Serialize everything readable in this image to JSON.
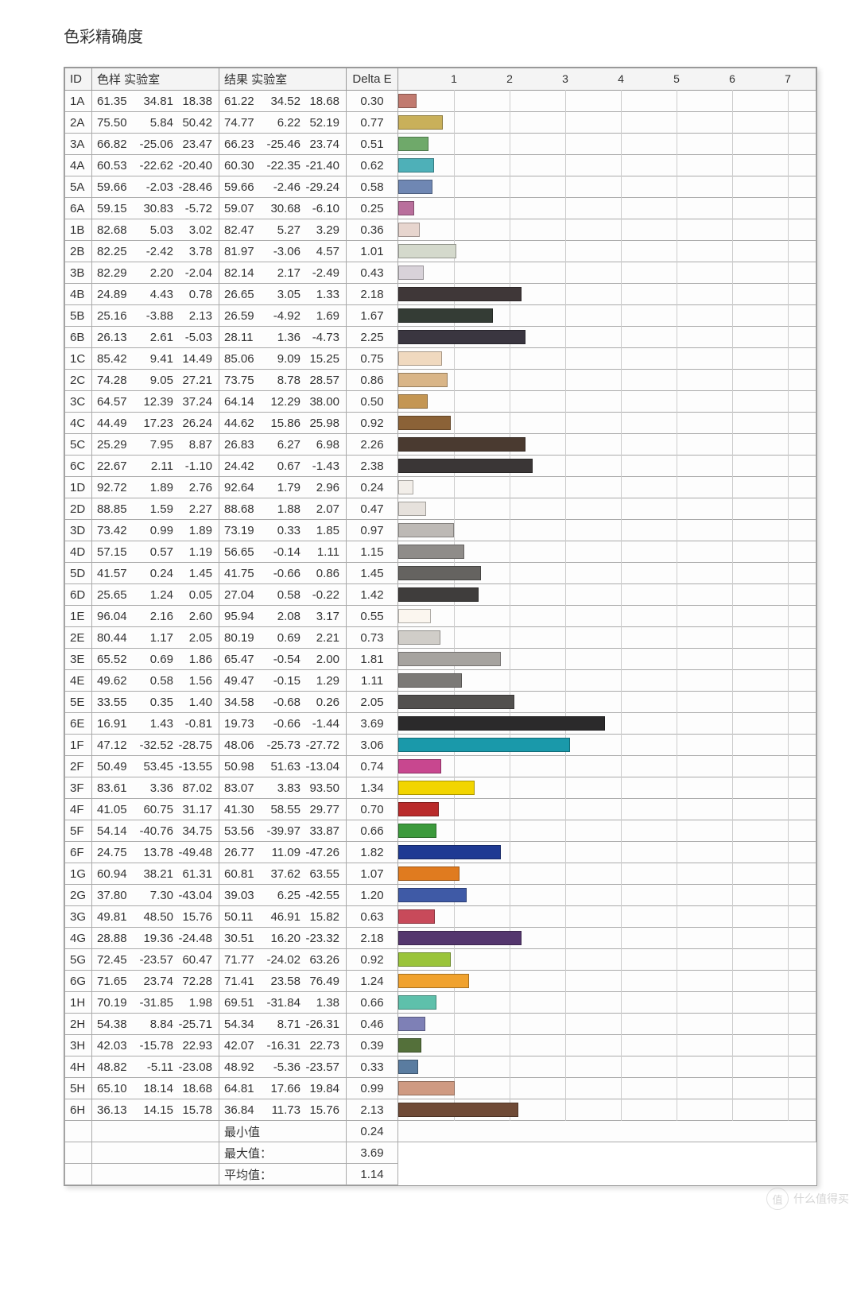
{
  "title": "色彩精确度",
  "columns": {
    "id": "ID",
    "sample": "色样 实验室",
    "result": "结果 实验室",
    "delta": "Delta E"
  },
  "chart": {
    "xmax": 7.5,
    "ticks": [
      1,
      2,
      3,
      4,
      5,
      6,
      7
    ],
    "grid_color": "#cccccc",
    "header_bg": "#f4f4f4",
    "border_color": "#999999"
  },
  "rows": [
    {
      "id": "1A",
      "s": [
        61.35,
        34.81,
        18.38
      ],
      "r": [
        61.22,
        34.52,
        18.68
      ],
      "d": 0.3,
      "color": "#c17a6f"
    },
    {
      "id": "2A",
      "s": [
        75.5,
        5.84,
        50.42
      ],
      "r": [
        74.77,
        6.22,
        52.19
      ],
      "d": 0.77,
      "color": "#c9b05a"
    },
    {
      "id": "3A",
      "s": [
        66.82,
        -25.06,
        23.47
      ],
      "r": [
        66.23,
        -25.46,
        23.74
      ],
      "d": 0.51,
      "color": "#6fa96a"
    },
    {
      "id": "4A",
      "s": [
        60.53,
        -22.62,
        -20.4
      ],
      "r": [
        60.3,
        -22.35,
        -21.4
      ],
      "d": 0.62,
      "color": "#4eb0b8"
    },
    {
      "id": "5A",
      "s": [
        59.66,
        -2.03,
        -28.46
      ],
      "r": [
        59.66,
        -2.46,
        -29.24
      ],
      "d": 0.58,
      "color": "#6f87b3"
    },
    {
      "id": "6A",
      "s": [
        59.15,
        30.83,
        -5.72
      ],
      "r": [
        59.07,
        30.68,
        -6.1
      ],
      "d": 0.25,
      "color": "#b96f9c"
    },
    {
      "id": "1B",
      "s": [
        82.68,
        5.03,
        3.02
      ],
      "r": [
        82.47,
        5.27,
        3.29
      ],
      "d": 0.36,
      "color": "#e7d5ce"
    },
    {
      "id": "2B",
      "s": [
        82.25,
        -2.42,
        3.78
      ],
      "r": [
        81.97,
        -3.06,
        4.57
      ],
      "d": 1.01,
      "color": "#d4d9cc"
    },
    {
      "id": "3B",
      "s": [
        82.29,
        2.2,
        -2.04
      ],
      "r": [
        82.14,
        2.17,
        -2.49
      ],
      "d": 0.43,
      "color": "#d8d2d9"
    },
    {
      "id": "4B",
      "s": [
        24.89,
        4.43,
        0.78
      ],
      "r": [
        26.65,
        3.05,
        1.33
      ],
      "d": 2.18,
      "color": "#3f3738"
    },
    {
      "id": "5B",
      "s": [
        25.16,
        -3.88,
        2.13
      ],
      "r": [
        26.59,
        -4.92,
        1.69
      ],
      "d": 1.67,
      "color": "#343c35"
    },
    {
      "id": "6B",
      "s": [
        26.13,
        2.61,
        -5.03
      ],
      "r": [
        28.11,
        1.36,
        -4.73
      ],
      "d": 2.25,
      "color": "#3a3640"
    },
    {
      "id": "1C",
      "s": [
        85.42,
        9.41,
        14.49
      ],
      "r": [
        85.06,
        9.09,
        15.25
      ],
      "d": 0.75,
      "color": "#f0d9bf"
    },
    {
      "id": "2C",
      "s": [
        74.28,
        9.05,
        27.21
      ],
      "r": [
        73.75,
        8.78,
        28.57
      ],
      "d": 0.86,
      "color": "#d9b587"
    },
    {
      "id": "3C",
      "s": [
        64.57,
        12.39,
        37.24
      ],
      "r": [
        64.14,
        12.29,
        38.0
      ],
      "d": 0.5,
      "color": "#c49653"
    },
    {
      "id": "4C",
      "s": [
        44.49,
        17.23,
        26.24
      ],
      "r": [
        44.62,
        15.86,
        25.98
      ],
      "d": 0.92,
      "color": "#8b6237"
    },
    {
      "id": "5C",
      "s": [
        25.29,
        7.95,
        8.87
      ],
      "r": [
        26.83,
        6.27,
        6.98
      ],
      "d": 2.26,
      "color": "#4a3a30"
    },
    {
      "id": "6C",
      "s": [
        22.67,
        2.11,
        -1.1
      ],
      "r": [
        24.42,
        0.67,
        -1.43
      ],
      "d": 2.38,
      "color": "#3a3636"
    },
    {
      "id": "1D",
      "s": [
        92.72,
        1.89,
        2.76
      ],
      "r": [
        92.64,
        1.79,
        2.96
      ],
      "d": 0.24,
      "color": "#f2eee9"
    },
    {
      "id": "2D",
      "s": [
        88.85,
        1.59,
        2.27
      ],
      "r": [
        88.68,
        1.88,
        2.07
      ],
      "d": 0.47,
      "color": "#e6e1dc"
    },
    {
      "id": "3D",
      "s": [
        73.42,
        0.99,
        1.89
      ],
      "r": [
        73.19,
        0.33,
        1.85
      ],
      "d": 0.97,
      "color": "#bdb9b5"
    },
    {
      "id": "4D",
      "s": [
        57.15,
        0.57,
        1.19
      ],
      "r": [
        56.65,
        -0.14,
        1.11
      ],
      "d": 1.15,
      "color": "#8f8c89"
    },
    {
      "id": "5D",
      "s": [
        41.57,
        0.24,
        1.45
      ],
      "r": [
        41.75,
        -0.66,
        0.86
      ],
      "d": 1.45,
      "color": "#656360"
    },
    {
      "id": "6D",
      "s": [
        25.65,
        1.24,
        0.05
      ],
      "r": [
        27.04,
        0.58,
        -0.22
      ],
      "d": 1.42,
      "color": "#3f3d3c"
    },
    {
      "id": "1E",
      "s": [
        96.04,
        2.16,
        2.6
      ],
      "r": [
        95.94,
        2.08,
        3.17
      ],
      "d": 0.55,
      "color": "#fbf6ef"
    },
    {
      "id": "2E",
      "s": [
        80.44,
        1.17,
        2.05
      ],
      "r": [
        80.19,
        0.69,
        2.21
      ],
      "d": 0.73,
      "color": "#d0cdc8"
    },
    {
      "id": "3E",
      "s": [
        65.52,
        0.69,
        1.86
      ],
      "r": [
        65.47,
        -0.54,
        2.0
      ],
      "d": 1.81,
      "color": "#a6a39f"
    },
    {
      "id": "4E",
      "s": [
        49.62,
        0.58,
        1.56
      ],
      "r": [
        49.47,
        -0.15,
        1.29
      ],
      "d": 1.11,
      "color": "#7b7976"
    },
    {
      "id": "5E",
      "s": [
        33.55,
        0.35,
        1.4
      ],
      "r": [
        34.58,
        -0.68,
        0.26
      ],
      "d": 2.05,
      "color": "#52504e"
    },
    {
      "id": "6E",
      "s": [
        16.91,
        1.43,
        -0.81
      ],
      "r": [
        19.73,
        -0.66,
        -1.44
      ],
      "d": 3.69,
      "color": "#2b2a2b"
    },
    {
      "id": "1F",
      "s": [
        47.12,
        -32.52,
        -28.75
      ],
      "r": [
        48.06,
        -25.73,
        -27.72
      ],
      "d": 3.06,
      "color": "#1a99aa"
    },
    {
      "id": "2F",
      "s": [
        50.49,
        53.45,
        -13.55
      ],
      "r": [
        50.98,
        51.63,
        -13.04
      ],
      "d": 0.74,
      "color": "#c8478f"
    },
    {
      "id": "3F",
      "s": [
        83.61,
        3.36,
        87.02
      ],
      "r": [
        83.07,
        3.83,
        93.5
      ],
      "d": 1.34,
      "color": "#f2d500"
    },
    {
      "id": "4F",
      "s": [
        41.05,
        60.75,
        31.17
      ],
      "r": [
        41.3,
        58.55,
        29.77
      ],
      "d": 0.7,
      "color": "#b92a2a"
    },
    {
      "id": "5F",
      "s": [
        54.14,
        -40.76,
        34.75
      ],
      "r": [
        53.56,
        -39.97,
        33.87
      ],
      "d": 0.66,
      "color": "#3c9a3c"
    },
    {
      "id": "6F",
      "s": [
        24.75,
        13.78,
        -49.48
      ],
      "r": [
        26.77,
        11.09,
        -47.26
      ],
      "d": 1.82,
      "color": "#1f3a93"
    },
    {
      "id": "1G",
      "s": [
        60.94,
        38.21,
        61.31
      ],
      "r": [
        60.81,
        37.62,
        63.55
      ],
      "d": 1.07,
      "color": "#e07b1f"
    },
    {
      "id": "2G",
      "s": [
        37.8,
        7.3,
        -43.04
      ],
      "r": [
        39.03,
        6.25,
        -42.55
      ],
      "d": 1.2,
      "color": "#3f5aa6"
    },
    {
      "id": "3G",
      "s": [
        49.81,
        48.5,
        15.76
      ],
      "r": [
        50.11,
        46.91,
        15.82
      ],
      "d": 0.63,
      "color": "#c84a5a"
    },
    {
      "id": "4G",
      "s": [
        28.88,
        19.36,
        -24.48
      ],
      "r": [
        30.51,
        16.2,
        -23.32
      ],
      "d": 2.18,
      "color": "#54366e"
    },
    {
      "id": "5G",
      "s": [
        72.45,
        -23.57,
        60.47
      ],
      "r": [
        71.77,
        -24.02,
        63.26
      ],
      "d": 0.92,
      "color": "#9ac43a"
    },
    {
      "id": "6G",
      "s": [
        71.65,
        23.74,
        72.28
      ],
      "r": [
        71.41,
        23.58,
        76.49
      ],
      "d": 1.24,
      "color": "#f0a22e"
    },
    {
      "id": "1H",
      "s": [
        70.19,
        -31.85,
        1.98
      ],
      "r": [
        69.51,
        -31.84,
        1.38
      ],
      "d": 0.66,
      "color": "#5ec0ab"
    },
    {
      "id": "2H",
      "s": [
        54.38,
        8.84,
        -25.71
      ],
      "r": [
        54.34,
        8.71,
        -26.31
      ],
      "d": 0.46,
      "color": "#7e80b6"
    },
    {
      "id": "3H",
      "s": [
        42.03,
        -15.78,
        22.93
      ],
      "r": [
        42.07,
        -16.31,
        22.73
      ],
      "d": 0.39,
      "color": "#54703a"
    },
    {
      "id": "4H",
      "s": [
        48.82,
        -5.11,
        -23.08
      ],
      "r": [
        48.92,
        -5.36,
        -23.57
      ],
      "d": 0.33,
      "color": "#5a7ca0"
    },
    {
      "id": "5H",
      "s": [
        65.1,
        18.14,
        18.68
      ],
      "r": [
        64.81,
        17.66,
        19.84
      ],
      "d": 0.99,
      "color": "#cf9a82"
    },
    {
      "id": "6H",
      "s": [
        36.13,
        14.15,
        15.78
      ],
      "r": [
        36.84,
        11.73,
        15.76
      ],
      "d": 2.13,
      "color": "#6f4a36"
    }
  ],
  "summary": [
    {
      "label": "最小值",
      "value": 0.24
    },
    {
      "label": "最大值：",
      "value": 3.69
    },
    {
      "label": "平均值：",
      "value": 1.14
    }
  ],
  "watermark": {
    "badge": "值",
    "text": "什么值得买"
  }
}
